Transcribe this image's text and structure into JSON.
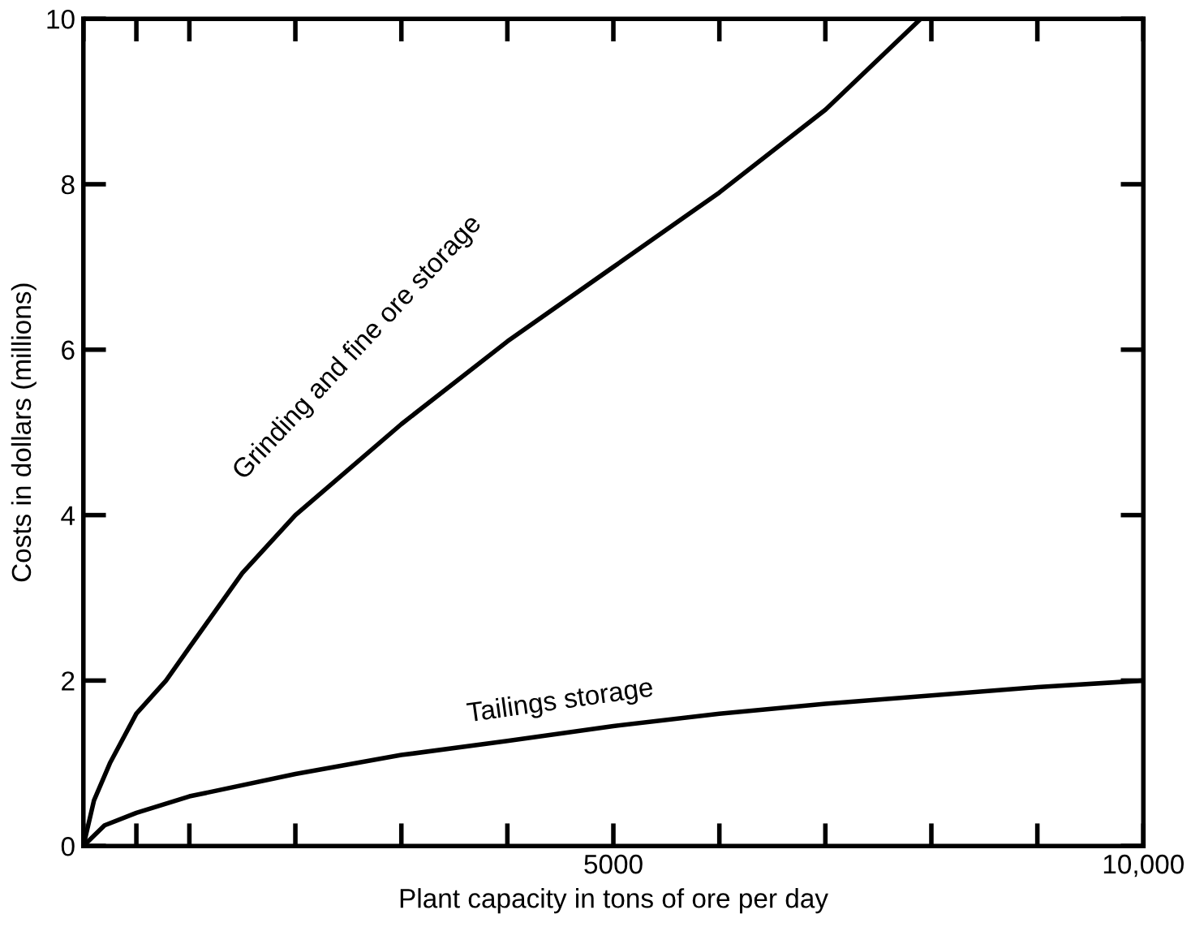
{
  "chart_data": {
    "type": "line",
    "xlabel": "Plant capacity in tons of ore per day",
    "ylabel": "Costs in dollars (millions)",
    "series": [
      {
        "x": [
          0,
          100,
          250,
          500,
          780,
          1000,
          1500,
          2000,
          3000,
          4000,
          5000,
          6000,
          7000,
          7900
        ],
        "values": [
          0,
          0.55,
          1,
          1.6,
          2,
          2.4,
          3.3,
          4,
          5.1,
          6.1,
          7.0,
          7.9,
          8.9,
          10
        ],
        "color": "#000000"
      },
      {
        "x": [
          0,
          200,
          500,
          1000,
          2000,
          3000,
          4000,
          5000,
          6000,
          7000,
          8000,
          9000,
          10000
        ],
        "values": [
          0,
          0.25,
          0.4,
          0.6,
          0.87,
          1.1,
          1.27,
          1.45,
          1.6,
          1.72,
          1.82,
          1.92,
          2.0
        ],
        "color": "#000000"
      }
    ],
    "annotations": [
      "Grinding and fine ore storage",
      "Tailings storage"
    ],
    "xlim": [
      0,
      10000
    ],
    "ylim": [
      0,
      10
    ],
    "xticks": [
      {
        "value": 0,
        "label": null
      },
      {
        "value": 500,
        "label": null
      },
      {
        "value": 1000,
        "label": null
      },
      {
        "value": 2000,
        "label": null
      },
      {
        "value": 3000,
        "label": null
      },
      {
        "value": 4000,
        "label": null
      },
      5000,
      {
        "value": 6000,
        "label": null
      },
      {
        "value": 7000,
        "label": null
      },
      {
        "value": 8000,
        "label": null
      },
      {
        "value": 9000,
        "label": null
      },
      {
        "value": 10000,
        "label": "10,000"
      }
    ],
    "yticks": [
      0,
      2,
      4,
      6,
      8,
      10
    ],
    "grid": false,
    "marker": "none",
    "line_style": "solid"
  }
}
